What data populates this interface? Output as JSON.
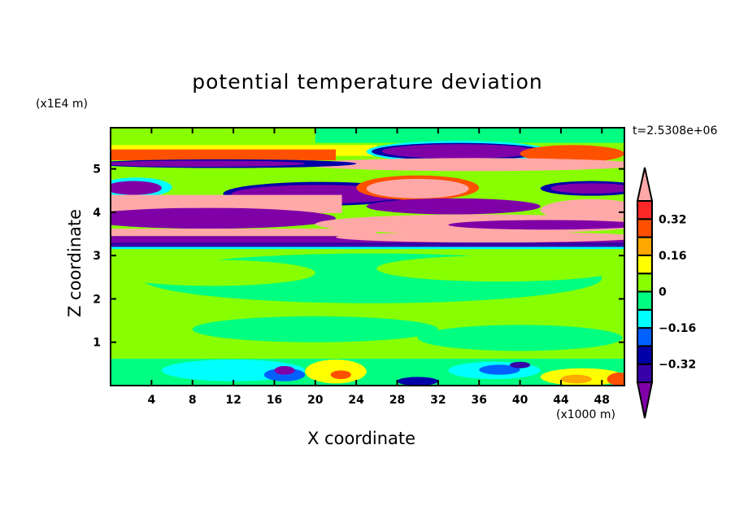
{
  "chart_data": {
    "type": "heatmap",
    "title": "potential temperature deviation",
    "xlabel": "X coordinate",
    "ylabel": "Z coordinate",
    "x_unit": "(x1000 m)",
    "y_unit": "(x1E4 m)",
    "time_label": "t=2.5308e+06",
    "xlim": [
      0,
      50.2
    ],
    "ylim": [
      0,
      5.95
    ],
    "x_ticks": [
      4,
      8,
      12,
      16,
      20,
      24,
      28,
      32,
      36,
      40,
      44,
      48
    ],
    "y_ticks": [
      1,
      2,
      3,
      4,
      5
    ],
    "colorbar": {
      "levels": [
        -0.4,
        -0.32,
        -0.24,
        -0.16,
        -0.08,
        0,
        0.08,
        0.16,
        0.24,
        0.32,
        0.4
      ],
      "tick_labels": [
        "0.32",
        "0.16",
        "0",
        "-0.16",
        "-0.32"
      ],
      "tick_values": [
        0.32,
        0.16,
        0,
        -0.16,
        -0.32
      ],
      "colors": [
        "#8000a8",
        "#3800a8",
        "#0000a8",
        "#0060ff",
        "#00ffff",
        "#00ff80",
        "#88ff00",
        "#ffff00",
        "#ffa800",
        "#ff5000",
        "#ff2828",
        "#ffa8a8"
      ],
      "extend": "both"
    },
    "features": [
      {
        "s": "r",
        "x0": 0,
        "x1": 50.2,
        "z0": 0,
        "z1": 5.95,
        "c": 6
      },
      {
        "s": "r",
        "x0": 20,
        "x1": 50.2,
        "z0": 5.6,
        "z1": 5.95,
        "c": 5
      },
      {
        "s": "r",
        "x0": 0,
        "x1": 50.2,
        "z0": 3.2,
        "z1": 3.4,
        "c": 5
      },
      {
        "s": "r",
        "x0": 0,
        "x1": 26,
        "z0": 5.3,
        "z1": 5.55,
        "c": 7
      },
      {
        "s": "r",
        "x0": 0,
        "x1": 22,
        "z0": 5.2,
        "z1": 5.45,
        "c": 9
      },
      {
        "s": "e",
        "x0": 25,
        "x1": 43,
        "z0": 5.15,
        "z1": 5.65,
        "c": 4
      },
      {
        "s": "e",
        "x0": 25.5,
        "x1": 42.5,
        "z0": 5.2,
        "z1": 5.6,
        "c": 2
      },
      {
        "s": "e",
        "x0": 26.5,
        "x1": 41.7,
        "z0": 5.24,
        "z1": 5.57,
        "c": 0
      },
      {
        "s": "e",
        "x0": 40,
        "x1": 50.2,
        "z0": 5.15,
        "z1": 5.55,
        "c": 9
      },
      {
        "s": "e",
        "x0": 19,
        "x1": 52,
        "z0": 4.95,
        "z1": 5.25,
        "c": 11
      },
      {
        "s": "e",
        "x0": -2,
        "x1": 24,
        "z0": 5.02,
        "z1": 5.22,
        "c": 2
      },
      {
        "s": "e",
        "x0": -1,
        "x1": 19,
        "z0": 5.05,
        "z1": 5.19,
        "c": 0
      },
      {
        "s": "e",
        "x0": -1,
        "x1": 6,
        "z0": 4.35,
        "z1": 4.8,
        "c": 4
      },
      {
        "s": "e",
        "x0": -0.5,
        "x1": 5,
        "z0": 4.4,
        "z1": 4.72,
        "c": 0
      },
      {
        "s": "e",
        "x0": 11,
        "x1": 30,
        "z0": 4.15,
        "z1": 4.7,
        "c": 2
      },
      {
        "s": "e",
        "x0": 11.8,
        "x1": 29,
        "z0": 4.2,
        "z1": 4.63,
        "c": 0
      },
      {
        "s": "e",
        "x0": 24,
        "x1": 36,
        "z0": 4.28,
        "z1": 4.85,
        "c": 9
      },
      {
        "s": "e",
        "x0": 25,
        "x1": 35,
        "z0": 4.32,
        "z1": 4.77,
        "c": 11
      },
      {
        "s": "e",
        "x0": 42,
        "x1": 52,
        "z0": 4.38,
        "z1": 4.72,
        "c": 2
      },
      {
        "s": "e",
        "x0": 43,
        "x1": 51,
        "z0": 4.43,
        "z1": 4.67,
        "c": 0
      },
      {
        "s": "r",
        "x0": 0,
        "x1": 22.6,
        "z0": 3.98,
        "z1": 4.4,
        "c": 11
      },
      {
        "s": "e",
        "x0": 25,
        "x1": 42,
        "z0": 3.95,
        "z1": 4.32,
        "c": 0
      },
      {
        "s": "e",
        "x0": 42,
        "x1": 52,
        "z0": 3.8,
        "z1": 4.3,
        "c": 11
      },
      {
        "s": "e",
        "x0": -3,
        "x1": 22,
        "z0": 3.62,
        "z1": 4.1,
        "c": 0
      },
      {
        "s": "e",
        "x0": 20,
        "x1": 52,
        "z0": 3.5,
        "z1": 3.95,
        "c": 11
      },
      {
        "s": "e",
        "x0": 33,
        "x1": 52,
        "z0": 3.6,
        "z1": 3.82,
        "c": 0
      },
      {
        "s": "r",
        "x0": 0,
        "x1": 26,
        "z0": 3.45,
        "z1": 3.62,
        "c": 11
      },
      {
        "s": "r",
        "x0": 0,
        "x1": 50.2,
        "z0": 3.28,
        "z1": 3.45,
        "c": 0
      },
      {
        "s": "e",
        "x0": 22,
        "x1": 52,
        "z0": 3.3,
        "z1": 3.55,
        "c": 11
      },
      {
        "s": "r",
        "x0": 0,
        "x1": 50.2,
        "z0": 3.18,
        "z1": 3.3,
        "c": 1
      },
      {
        "s": "r",
        "x0": 0,
        "x1": 50.2,
        "z0": 3.15,
        "z1": 3.2,
        "c": 4
      },
      {
        "s": "e",
        "x0": 3,
        "x1": 48,
        "z0": 1.9,
        "z1": 3.05,
        "c": 5
      },
      {
        "s": "e",
        "x0": 0,
        "x1": 20,
        "z0": 2.3,
        "z1": 2.9,
        "c": 6
      },
      {
        "s": "e",
        "x0": 26,
        "x1": 50,
        "z0": 2.4,
        "z1": 3.0,
        "c": 6
      },
      {
        "s": "e",
        "x0": 8,
        "x1": 32,
        "z0": 1.0,
        "z1": 1.6,
        "c": 5
      },
      {
        "s": "e",
        "x0": 30,
        "x1": 50,
        "z0": 0.8,
        "z1": 1.4,
        "c": 5
      },
      {
        "s": "r",
        "x0": 0,
        "x1": 50.2,
        "z0": 0,
        "z1": 0.62,
        "c": 5
      },
      {
        "s": "e",
        "x0": 5,
        "x1": 19,
        "z0": 0.1,
        "z1": 0.6,
        "c": 4
      },
      {
        "s": "e",
        "x0": 15,
        "x1": 19,
        "z0": 0.1,
        "z1": 0.4,
        "c": 3
      },
      {
        "s": "e",
        "x0": 16,
        "x1": 18,
        "z0": 0.25,
        "z1": 0.45,
        "c": 0
      },
      {
        "s": "e",
        "x0": 19,
        "x1": 25,
        "z0": 0.05,
        "z1": 0.6,
        "c": 7
      },
      {
        "s": "e",
        "x0": 21.5,
        "x1": 23.5,
        "z0": 0.15,
        "z1": 0.35,
        "c": 9
      },
      {
        "s": "e",
        "x0": 28,
        "x1": 32,
        "z0": 0,
        "z1": 0.2,
        "c": 2
      },
      {
        "s": "e",
        "x0": 33,
        "x1": 42,
        "z0": 0.15,
        "z1": 0.55,
        "c": 4
      },
      {
        "s": "e",
        "x0": 36,
        "x1": 40,
        "z0": 0.25,
        "z1": 0.48,
        "c": 3
      },
      {
        "s": "e",
        "x0": 39,
        "x1": 41,
        "z0": 0.4,
        "z1": 0.55,
        "c": 1
      },
      {
        "s": "e",
        "x0": 42,
        "x1": 50.2,
        "z0": 0,
        "z1": 0.4,
        "c": 7
      },
      {
        "s": "e",
        "x0": 44,
        "x1": 47,
        "z0": 0.05,
        "z1": 0.25,
        "c": 8
      },
      {
        "s": "e",
        "x0": 48.5,
        "x1": 51,
        "z0": 0,
        "z1": 0.3,
        "c": 9
      }
    ]
  }
}
